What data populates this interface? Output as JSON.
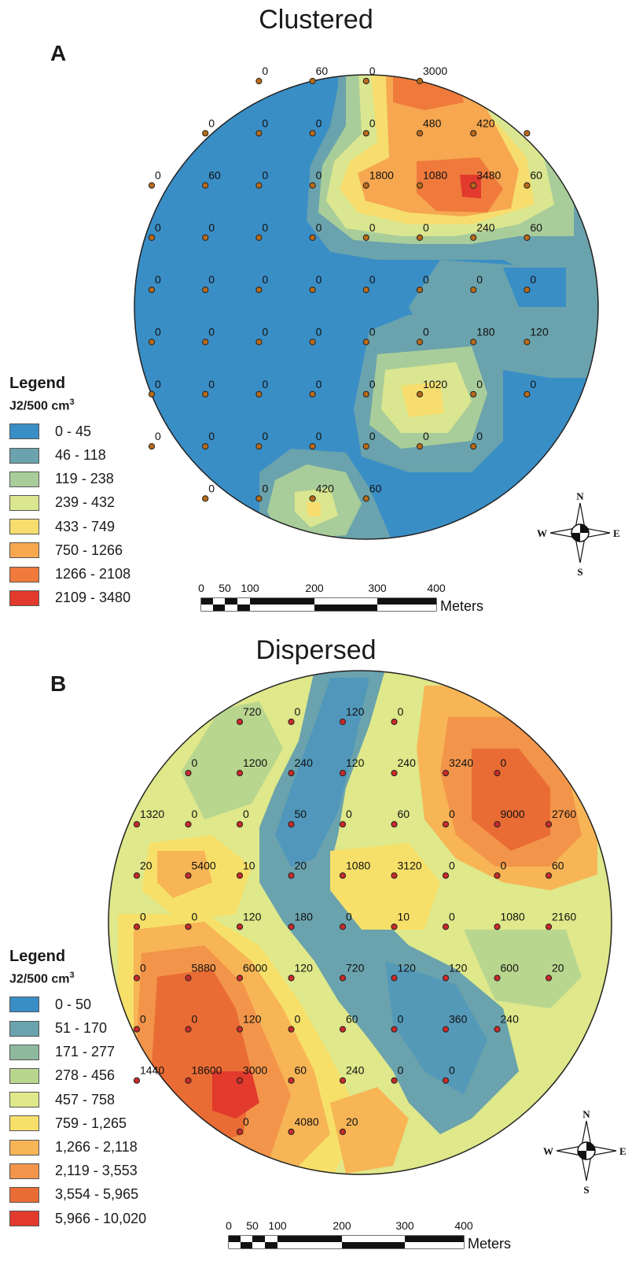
{
  "panels": [
    {
      "id": "A",
      "title": "Clustered",
      "letter": "A",
      "legend": {
        "title": "Legend",
        "unit_main": "J2/500 cm",
        "unit_sup": "3",
        "classes": [
          {
            "label": "0 - 45",
            "color": "#3a8ec6"
          },
          {
            "label": "46 - 118",
            "color": "#6aa3ad"
          },
          {
            "label": "119 - 238",
            "color": "#a9cd9a"
          },
          {
            "label": "239 - 432",
            "color": "#dbe690"
          },
          {
            "label": "433 - 749",
            "color": "#f6dd6e"
          },
          {
            "label": "750 - 1266",
            "color": "#f6a750"
          },
          {
            "label": "1266 - 2108",
            "color": "#ef7a3c"
          },
          {
            "label": "2109 - 3480",
            "color": "#e23a2c"
          }
        ]
      },
      "scale": {
        "ticks": [
          "0",
          "50",
          "100",
          "200",
          "300",
          "400"
        ],
        "unit": "Meters"
      },
      "compass": {
        "n": "N",
        "s": "S",
        "e": "E",
        "w": "W"
      },
      "point_color": "#b86a1a",
      "samples": [
        [
          null,
          null,
          "0",
          "60",
          "0",
          "3000",
          null,
          null,
          null
        ],
        [
          null,
          "0",
          "0",
          "0",
          "0",
          "480",
          "420",
          "",
          null
        ],
        [
          "0",
          "60",
          "0",
          "0",
          "1800",
          "1080",
          "3480",
          "60",
          null
        ],
        [
          "0",
          "0",
          "0",
          "0",
          "0",
          "0",
          "240",
          "60",
          null
        ],
        [
          "0",
          "0",
          "0",
          "0",
          "0",
          "0",
          "0",
          "0",
          null
        ],
        [
          "0",
          "0",
          "0",
          "0",
          "0",
          "0",
          "180",
          "120",
          null
        ],
        [
          "0",
          "0",
          "0",
          "0",
          "0",
          "1020",
          "0",
          "0",
          null
        ],
        [
          "0",
          "0",
          "0",
          "0",
          "0",
          "0",
          "0",
          null,
          null
        ],
        [
          null,
          "0",
          "0",
          "420",
          "60",
          null,
          null,
          null,
          null
        ]
      ]
    },
    {
      "id": "B",
      "title": "Dispersed",
      "letter": "B",
      "legend": {
        "title": "Legend",
        "unit_main": "J2/500 cm",
        "unit_sup": "3",
        "classes": [
          {
            "label": "0 - 50",
            "color": "#3a8ec6"
          },
          {
            "label": "51 - 170",
            "color": "#6aa3ad"
          },
          {
            "label": "171 - 277",
            "color": "#8fb99d"
          },
          {
            "label": "278 - 456",
            "color": "#b9d68f"
          },
          {
            "label": "457 - 758",
            "color": "#dfe88a"
          },
          {
            "label": "759 - 1,265",
            "color": "#f7e06a"
          },
          {
            "label": "1,266 - 2,118",
            "color": "#f7b556"
          },
          {
            "label": "2,119 - 3,553",
            "color": "#f2954a"
          },
          {
            "label": "3,554 - 5,965",
            "color": "#ea6c35"
          },
          {
            "label": "5,966 - 10,020",
            "color": "#e23a2c"
          }
        ]
      },
      "scale": {
        "ticks": [
          "0",
          "50",
          "100",
          "200",
          "300",
          "400"
        ],
        "unit": "Meters"
      },
      "compass": {
        "n": "N",
        "s": "S",
        "e": "E",
        "w": "W"
      },
      "point_color": "#c92a2a",
      "samples": [
        [
          null,
          null,
          "720",
          "0",
          "120",
          "0",
          null,
          null,
          null
        ],
        [
          null,
          "0",
          "1200",
          "240",
          "120",
          "240",
          "3240",
          "0",
          null
        ],
        [
          "1320",
          "0",
          "0",
          "50",
          "0",
          "60",
          "0",
          "9000",
          "2760"
        ],
        [
          "20",
          "5400",
          "10",
          "20",
          "1080",
          "3120",
          "0",
          "0",
          "60"
        ],
        [
          "0",
          "0",
          "120",
          "180",
          "0",
          "10",
          "0",
          "1080",
          "2160"
        ],
        [
          "0",
          "5880",
          "6000",
          "120",
          "720",
          "120",
          "120",
          "600",
          "20"
        ],
        [
          "0",
          "0",
          "120",
          "0",
          "60",
          "0",
          "360",
          "240",
          null
        ],
        [
          "1440",
          "18600",
          "3000",
          "60",
          "240",
          "0",
          "0",
          null,
          null
        ],
        [
          null,
          null,
          "0",
          "4080",
          "20",
          null,
          null,
          null,
          null
        ]
      ]
    }
  ]
}
